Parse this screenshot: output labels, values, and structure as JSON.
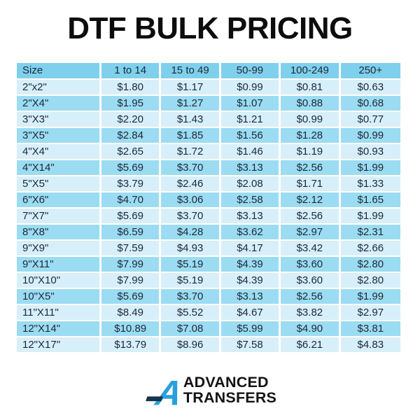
{
  "title": "DTF BULK PRICING",
  "chart_data": {
    "type": "table",
    "title": "DTF BULK PRICING",
    "columns": [
      "Size",
      "1 to 14",
      "15 to 49",
      "50-99",
      "100-249",
      "250+"
    ],
    "rows": [
      [
        "2\"x2\"",
        "$1.80",
        "$1.17",
        "$0.99",
        "$0.81",
        "$0.63"
      ],
      [
        "2\"X4\"",
        "$1.95",
        "$1.27",
        "$1.07",
        "$0.88",
        "$0.68"
      ],
      [
        "3\"X3\"",
        "$2.20",
        "$1.43",
        "$1.21",
        "$0.99",
        "$0.77"
      ],
      [
        "3\"X5\"",
        "$2.84",
        "$1.85",
        "$1.56",
        "$1.28",
        "$0.99"
      ],
      [
        "4\"X4\"",
        "$2.65",
        "$1.72",
        "$1.46",
        "$1.19",
        "$0.93"
      ],
      [
        "4\"X14\"",
        "$5.69",
        "$3.70",
        "$3.13",
        "$2.56",
        "$1.99"
      ],
      [
        "5\"X5\"",
        "$3.79",
        "$2.46",
        "$2.08",
        "$1.71",
        "$1.33"
      ],
      [
        "6\"X6\"",
        "$4.70",
        "$3.06",
        "$2.58",
        "$2.12",
        "$1.65"
      ],
      [
        "7\"X7\"",
        "$5.69",
        "$3.70",
        "$3.13",
        "$2.56",
        "$1.99"
      ],
      [
        "8\"X8\"",
        "$6.59",
        "$4.28",
        "$3.62",
        "$2.97",
        "$2.31"
      ],
      [
        "9\"X9\"",
        "$7.59",
        "$4.93",
        "$4.17",
        "$3.42",
        "$2.66"
      ],
      [
        "9\"X11\"",
        "$7.99",
        "$5.19",
        "$4.39",
        "$3.60",
        "$2.80"
      ],
      [
        "10\"X10\"",
        "$7.99",
        "$5.19",
        "$4.39",
        "$3.60",
        "$2.80"
      ],
      [
        "10\"X5\"",
        "$5.69",
        "$3.70",
        "$3.13",
        "$2.56",
        "$1.99"
      ],
      [
        "11\"X11\"",
        "$8.49",
        "$5.52",
        "$4.67",
        "$3.82",
        "$2.97"
      ],
      [
        "12\"X14\"",
        "$10.89",
        "$7.08",
        "$5.99",
        "$4.90",
        "$3.81"
      ],
      [
        "12\"X17\"",
        "$13.79",
        "$8.96",
        "$7.58",
        "$6.21",
        "$4.83"
      ]
    ]
  },
  "logo": {
    "line1": "ADVANCED",
    "line2": "TRANSFERS",
    "mark_icon": "stylized-italic-a-with-dash",
    "mark_blue": "#2b9fdc",
    "mark_navy": "#16344e"
  },
  "colors": {
    "header_row": "#7fd0ec",
    "row_light": "#d7eff9",
    "row_medium": "#9bdcf2",
    "table_text": "#1d2836",
    "background": "#ffffff",
    "title_text": "#0d0d0d"
  }
}
